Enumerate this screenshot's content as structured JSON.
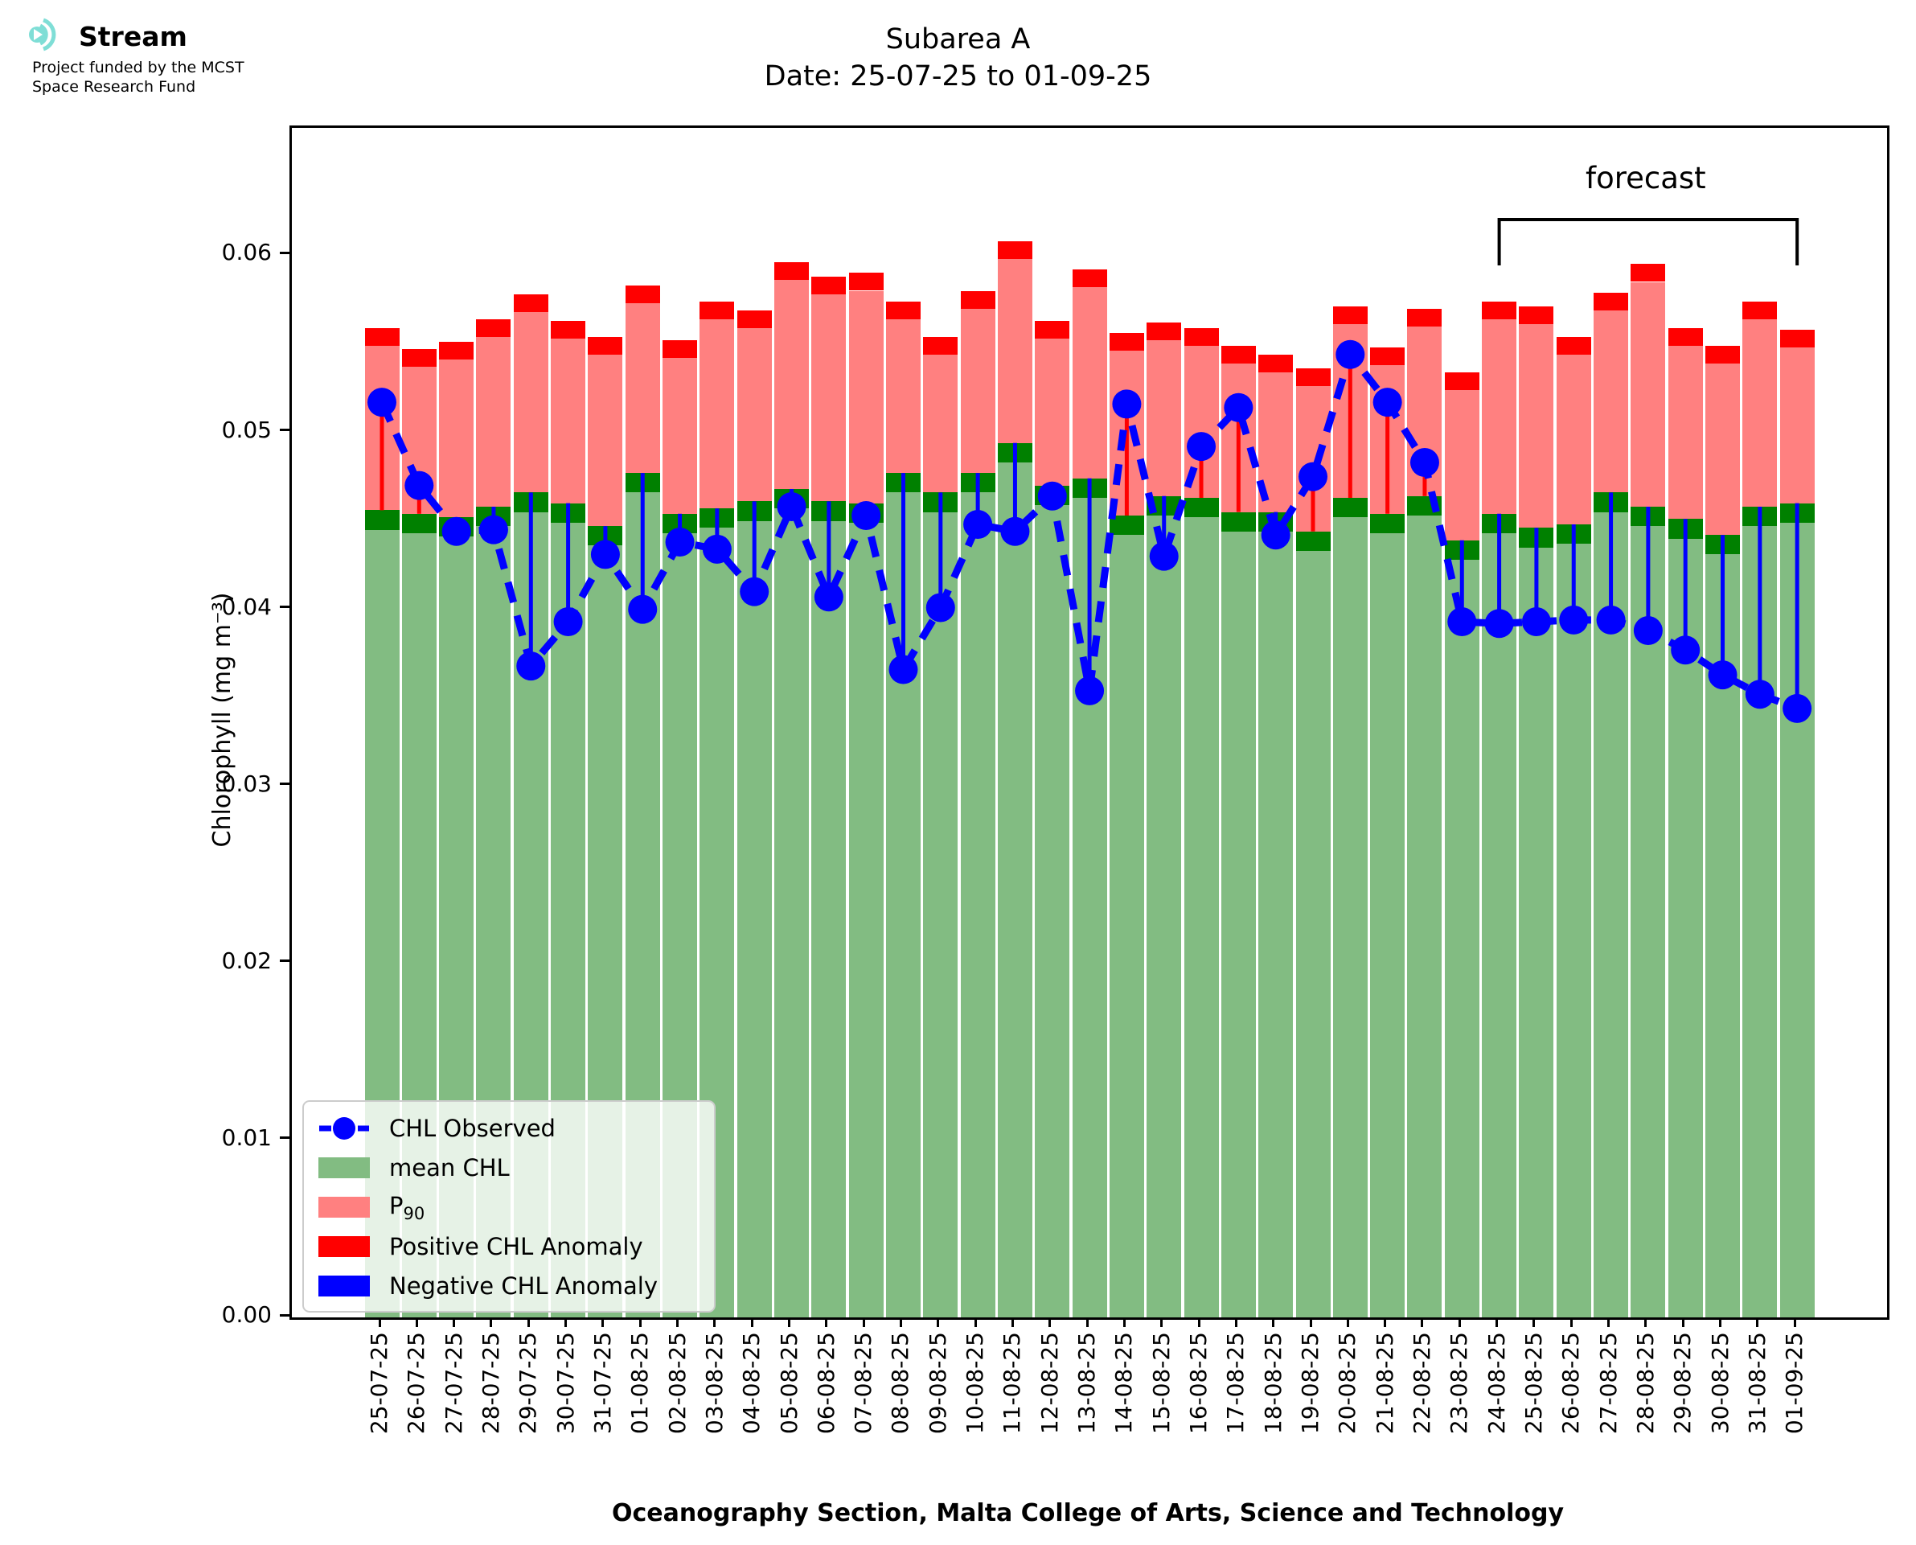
{
  "branding": {
    "name": "Stream",
    "funding_line1": "Project funded by the MCST",
    "funding_line2": "Space Research Fund",
    "logo_color": "#7FDED6"
  },
  "title": {
    "line1": "Subarea A",
    "line2": "Date: 25-07-25 to 01-09-25"
  },
  "axes": {
    "ylabel": "Chlorophyll (mg m⁻³)",
    "xlabel": "Oceanography Section, Malta College of Arts, Science and Technology",
    "ytick_labels": [
      "0.00",
      "0.01",
      "0.02",
      "0.03",
      "0.04",
      "0.05",
      "0.06"
    ]
  },
  "legend": {
    "items": [
      {
        "label": "CHL Observed",
        "sub": "",
        "type": "line",
        "color": "#0000FF"
      },
      {
        "label": "mean CHL",
        "sub": "",
        "type": "patch",
        "color": "#82BC82"
      },
      {
        "label": "P",
        "sub": "90",
        "type": "patch",
        "color": "#FF8080"
      },
      {
        "label": "Positive CHL Anomaly",
        "sub": "",
        "type": "patch",
        "color": "#FF0000"
      },
      {
        "label": "Negative CHL Anomaly",
        "sub": "",
        "type": "patch",
        "color": "#0000FF"
      }
    ]
  },
  "chart_data": {
    "type": "bar+line",
    "title": "Subarea A",
    "subtitle": "Date: 25-07-25 to 01-09-25",
    "xlabel": "Oceanography Section, Malta College of Arts, Science and Technology",
    "ylabel": "Chlorophyll (mg m⁻³)",
    "ylim": [
      0,
      0.0672
    ],
    "yticks": [
      0,
      0.01,
      0.02,
      0.03,
      0.04,
      0.05,
      0.06
    ],
    "grid": false,
    "legend_position": "lower left",
    "x": [
      "25-07-25",
      "26-07-25",
      "27-07-25",
      "28-07-25",
      "29-07-25",
      "30-07-25",
      "31-07-25",
      "01-08-25",
      "02-08-25",
      "03-08-25",
      "04-08-25",
      "05-08-25",
      "06-08-25",
      "07-08-25",
      "08-08-25",
      "09-08-25",
      "10-08-25",
      "11-08-25",
      "12-08-25",
      "13-08-25",
      "14-08-25",
      "15-08-25",
      "16-08-25",
      "17-08-25",
      "18-08-25",
      "19-08-25",
      "20-08-25",
      "21-08-25",
      "22-08-25",
      "23-08-25",
      "24-08-25",
      "25-08-25",
      "26-08-25",
      "27-08-25",
      "28-08-25",
      "29-08-25",
      "30-08-25",
      "31-08-25",
      "01-09-25"
    ],
    "series": [
      {
        "name": "mean CHL",
        "type": "bar",
        "color": "#82BC82",
        "cap_color": "#008000",
        "cap_size": 0.0011,
        "values": [
          0.0456,
          0.0454,
          0.0452,
          0.0458,
          0.0466,
          0.046,
          0.0447,
          0.0477,
          0.0454,
          0.0457,
          0.0461,
          0.0468,
          0.0461,
          0.046,
          0.0477,
          0.0466,
          0.0477,
          0.0494,
          0.047,
          0.0474,
          0.0453,
          0.0464,
          0.0463,
          0.0455,
          0.0455,
          0.0444,
          0.0463,
          0.0454,
          0.0464,
          0.0439,
          0.0454,
          0.0446,
          0.0448,
          0.0466,
          0.0458,
          0.0451,
          0.0442,
          0.0458,
          0.046
        ]
      },
      {
        "name": "P90",
        "type": "bar",
        "color": "#FF8080",
        "cap_color": "#FF0000",
        "cap_size": 0.001,
        "values": [
          0.0559,
          0.0547,
          0.0551,
          0.0564,
          0.0578,
          0.0563,
          0.0554,
          0.0583,
          0.0552,
          0.0574,
          0.0569,
          0.0596,
          0.0588,
          0.059,
          0.0574,
          0.0554,
          0.058,
          0.0608,
          0.0563,
          0.0592,
          0.0556,
          0.0562,
          0.0559,
          0.0549,
          0.0544,
          0.0536,
          0.0571,
          0.0548,
          0.057,
          0.0534,
          0.0574,
          0.0571,
          0.0554,
          0.0579,
          0.0595,
          0.0559,
          0.0549,
          0.0574,
          0.0558
        ]
      },
      {
        "name": "CHL Observed",
        "type": "line",
        "color": "#0000FF",
        "marker": "circle",
        "linestyle": "dashed",
        "values": [
          0.0517,
          0.047,
          0.0444,
          0.0445,
          0.0368,
          0.0393,
          0.0431,
          0.04,
          0.0438,
          0.0434,
          0.041,
          0.0458,
          0.0407,
          0.0453,
          0.0366,
          0.0401,
          0.0448,
          0.0444,
          0.0464,
          0.0354,
          0.0516,
          0.043,
          0.0492,
          0.0514,
          0.0442,
          0.0475,
          0.0544,
          0.0517,
          0.0483,
          0.0393,
          0.0392,
          0.0393,
          0.0394,
          0.0394,
          0.0388,
          0.0377,
          0.0363,
          0.0352,
          0.0344
        ]
      }
    ],
    "anomaly": {
      "positive_color": "#FF0000",
      "negative_color": "#0000FF",
      "description": "vertical line from mean CHL top to CHL Observed marker"
    },
    "forecast": {
      "label": "forecast",
      "start": "24-08-25",
      "end": "01-09-25"
    }
  }
}
